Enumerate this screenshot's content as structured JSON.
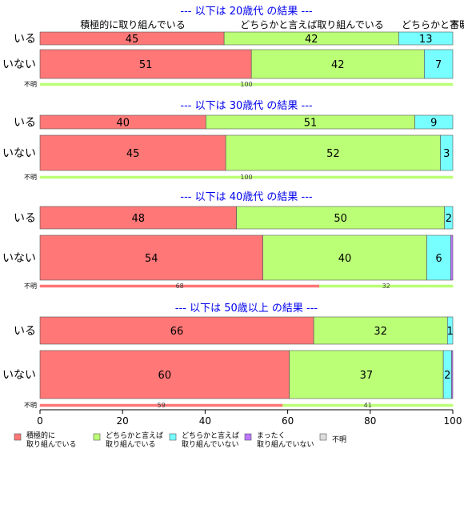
{
  "chart_data": {
    "type": "bar",
    "orientation": "horizontal",
    "stacked": true,
    "xlim": [
      0,
      100
    ],
    "xticks": [
      0,
      20,
      40,
      60,
      80,
      100
    ],
    "categories": [
      "積極的に取り組んでいる",
      "どちらかと言えば取り組んでいる",
      "どちらかと言えば取り組んでいない",
      "まったく取り組んでいない",
      "不明"
    ],
    "colors": [
      "#ff7777",
      "#bbff77",
      "#77ffff",
      "#bb77ff",
      "#dddddd"
    ],
    "category_labels_top": [
      "積極的に取り組んでいる",
      "どちらかと言えば取り組んでいる",
      "どちらかと言えば",
      "不明"
    ],
    "legend": [
      {
        "line1": "積極的に",
        "line2": "取り組んでいる"
      },
      {
        "line1": "どちらかと言えば",
        "line2": "取り組んでいる"
      },
      {
        "line1": "どちらかと言えば",
        "line2": "取り組んでいない"
      },
      {
        "line1": "まったく",
        "line2": "取り組んでいない"
      },
      {
        "line1": "不明",
        "line2": ""
      }
    ],
    "panels": [
      {
        "title": "--- 以下は 20歳代 の結果 ---",
        "rows": [
          {
            "label": "いる",
            "values": [
              44.6,
              42.3,
              13.1,
              0,
              0
            ],
            "labels": [
              "45",
              "42",
              "13",
              "",
              ""
            ]
          },
          {
            "label": "いない",
            "values": [
              51.2,
              41.9,
              6.9,
              0,
              0
            ],
            "labels": [
              "51",
              "42",
              "7",
              "",
              ""
            ]
          },
          {
            "label": "不明",
            "values": [
              0,
              100,
              0,
              0,
              0
            ],
            "labels": [
              "",
              "100",
              "",
              "",
              ""
            ]
          }
        ]
      },
      {
        "title": "--- 以下は 30歳代 の結果 ---",
        "rows": [
          {
            "label": "いる",
            "values": [
              40.2,
              50.6,
              9.2,
              0,
              0
            ],
            "labels": [
              "40",
              "51",
              "9",
              "",
              ""
            ]
          },
          {
            "label": "いない",
            "values": [
              45.0,
              52.0,
              3.0,
              0,
              0
            ],
            "labels": [
              "45",
              "52",
              "3",
              "",
              ""
            ]
          },
          {
            "label": "不明",
            "values": [
              0,
              100,
              0,
              0,
              0
            ],
            "labels": [
              "",
              "100",
              "",
              "",
              ""
            ]
          }
        ]
      },
      {
        "title": "--- 以下は 40歳代 の結果 ---",
        "rows": [
          {
            "label": "いる",
            "values": [
              47.6,
              50.4,
              2.0,
              0,
              0
            ],
            "labels": [
              "48",
              "50",
              "2",
              "",
              ""
            ]
          },
          {
            "label": "いない",
            "values": [
              54.0,
              39.7,
              5.8,
              0.5,
              0
            ],
            "labels": [
              "54",
              "40",
              "6",
              "",
              ""
            ]
          },
          {
            "label": "不明",
            "values": [
              67.7,
              32.3,
              0,
              0,
              0
            ],
            "labels": [
              "68",
              "32",
              "",
              "",
              ""
            ]
          }
        ]
      },
      {
        "title": "--- 以下は 50歳以上 の結果 ---",
        "rows": [
          {
            "label": "いる",
            "values": [
              66.3,
              32.4,
              1.3,
              0,
              0
            ],
            "labels": [
              "66",
              "32",
              "1",
              "",
              ""
            ]
          },
          {
            "label": "いない",
            "values": [
              60.4,
              37.3,
              2.0,
              0.3,
              0
            ],
            "labels": [
              "60",
              "37",
              "2",
              "",
              ""
            ]
          },
          {
            "label": "不明",
            "values": [
              58.8,
              41.2,
              0,
              0,
              0
            ],
            "labels": [
              "59",
              "41",
              "",
              "",
              ""
            ]
          }
        ]
      }
    ]
  }
}
